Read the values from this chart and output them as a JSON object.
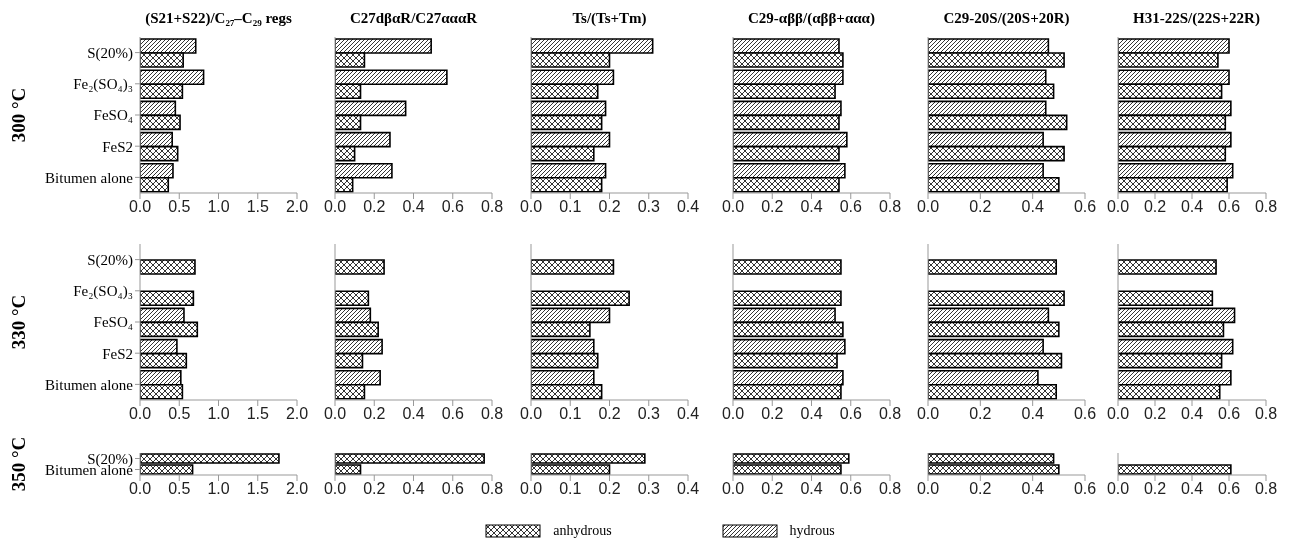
{
  "chart_data": [
    {
      "type": "bar",
      "orientation": "horizontal",
      "title": "(S21+S22)/C₂₇–C₂₉ regs",
      "ylabel": "300 °C",
      "legend": "bottom",
      "categories": [
        "S(20%)",
        "Fe₂(SO₄)₃",
        "FeSO₄",
        "FeS2",
        "Bitumen alone"
      ],
      "xlim": [
        0,
        2
      ],
      "xticks": [
        {
          "value": 0,
          "label": "0.0"
        },
        {
          "value": 0.5,
          "label": "0.5"
        },
        {
          "value": 1,
          "label": "1.0"
        },
        {
          "value": 1.5,
          "label": "1.5"
        },
        {
          "value": 2,
          "label": "2.0"
        }
      ],
      "series": [
        {
          "name": "anhydrous",
          "color": "#000000",
          "values": [
            0.55,
            0.54,
            0.51,
            0.48,
            0.36
          ]
        },
        {
          "name": "hydrous",
          "color": "#000000",
          "values": [
            0.71,
            0.81,
            0.45,
            0.41,
            0.42
          ]
        }
      ]
    },
    {
      "type": "bar",
      "orientation": "horizontal",
      "title": "C27dβαR/C27αααR",
      "tick_labels": "x",
      "categories": [
        null,
        null,
        null,
        null,
        null
      ],
      "xlim": [
        0,
        0.8
      ],
      "xticks": [
        {
          "value": 0,
          "label": "0.0"
        },
        {
          "value": 0.2,
          "label": "0.2"
        },
        {
          "value": 0.4,
          "label": "0.4"
        },
        {
          "value": 0.6,
          "label": "0.6"
        },
        {
          "value": 0.8,
          "label": "0.8"
        }
      ],
      "series": [
        {
          "color": "#000000",
          "values": [
            0.15,
            0.13,
            0.13,
            0.1,
            0.09
          ]
        },
        {
          "color": "#000000",
          "values": [
            0.49,
            0.57,
            0.36,
            0.28,
            0.29
          ]
        }
      ]
    },
    {
      "type": "bar",
      "orientation": "horizontal",
      "title": "Ts/(Ts+Tm)",
      "tick_labels": "x",
      "categories": [
        null,
        null,
        null,
        null,
        null
      ],
      "xlim": [
        0,
        0.4
      ],
      "xticks": [
        {
          "value": 0,
          "label": "0.0"
        },
        0.1,
        0.2,
        0.3,
        0.4
      ],
      "series": [
        {
          "color": "#000000",
          "values": [
            0.2,
            0.17,
            0.18,
            0.16,
            0.18
          ]
        },
        {
          "color": "#000000",
          "values": [
            0.31,
            0.21,
            0.19,
            0.2,
            0.19
          ]
        }
      ]
    },
    {
      "type": "bar",
      "orientation": "horizontal",
      "title": "C29-αββ/(αββ+ααα)",
      "tick_labels": "x",
      "categories": [
        null,
        null,
        null,
        null,
        null
      ],
      "xlim": [
        0,
        0.8
      ],
      "xticks": [
        {
          "value": 0,
          "label": "0.0"
        },
        {
          "value": 0.2,
          "label": "0.2"
        },
        {
          "value": 0.4,
          "label": "0.4"
        },
        {
          "value": 0.6,
          "label": "0.6"
        },
        {
          "value": 0.8,
          "label": "0.8"
        }
      ],
      "series": [
        {
          "color": "#000000",
          "values": [
            0.56,
            0.52,
            0.54,
            0.54,
            0.54
          ]
        },
        {
          "color": "#000000",
          "values": [
            0.54,
            0.56,
            0.55,
            0.58,
            0.57
          ]
        }
      ]
    },
    {
      "type": "bar",
      "orientation": "horizontal",
      "title": "C29-20S/(20S+20R)",
      "tick_labels": "x",
      "categories": [
        null,
        null,
        null,
        null,
        null
      ],
      "xlim": [
        0,
        0.6
      ],
      "xticks": [
        {
          "value": 0,
          "label": "0.0"
        },
        {
          "value": 0.2,
          "label": "0.2"
        },
        {
          "value": 0.4,
          "label": "0.4"
        },
        {
          "value": 0.6,
          "label": "0.6"
        }
      ],
      "series": [
        {
          "color": "#000000",
          "values": [
            0.52,
            0.48,
            0.53,
            0.52,
            0.5
          ]
        },
        {
          "color": "#000000",
          "values": [
            0.46,
            0.45,
            0.45,
            0.44,
            0.44
          ]
        }
      ]
    },
    {
      "type": "bar",
      "orientation": "horizontal",
      "title": "H31-22S/(22S+22R)",
      "tick_labels": "x",
      "categories": [
        null,
        null,
        null,
        null,
        null
      ],
      "xlim": [
        0,
        0.8
      ],
      "xticks": [
        {
          "value": 0,
          "label": "0.0"
        },
        {
          "value": 0.2,
          "label": "0.2"
        },
        {
          "value": 0.4,
          "label": "0.4"
        },
        {
          "value": 0.6,
          "label": "0.6"
        },
        {
          "value": 0.8,
          "label": "0.8"
        }
      ],
      "series": [
        {
          "color": "#000000",
          "values": [
            0.54,
            0.56,
            0.58,
            0.58,
            0.59
          ]
        },
        {
          "color": "#000000",
          "values": [
            0.6,
            0.6,
            0.61,
            0.61,
            0.62
          ]
        }
      ]
    },
    {
      "type": "bar",
      "orientation": "horizontal",
      "ylabel": "330 °C",
      "categories": [
        "S(20%)",
        "Fe₂(SO₄)₃",
        "FeSO₄",
        "FeS2",
        "Bitumen alone"
      ],
      "xlim": [
        0,
        2
      ],
      "xticks": [
        {
          "value": 0,
          "label": "0.0"
        },
        {
          "value": 0.5,
          "label": "0.5"
        },
        {
          "value": 1,
          "label": "1.0"
        },
        {
          "value": 1.5,
          "label": "1.5"
        },
        {
          "value": 2,
          "label": "2.0"
        }
      ],
      "series": [
        {
          "color": "#000000",
          "values": [
            0.7,
            0.68,
            0.73,
            0.59,
            0.54
          ]
        },
        {
          "color": "#000000",
          "values": [
            null,
            null,
            0.56,
            0.47,
            0.52
          ]
        }
      ]
    },
    {
      "type": "bar",
      "orientation": "horizontal",
      "tick_labels": "x",
      "categories": [
        null,
        null,
        null,
        null,
        null
      ],
      "xlim": [
        0,
        0.8
      ],
      "xticks": [
        {
          "value": 0,
          "label": "0.0"
        },
        {
          "value": 0.2,
          "label": "0.2"
        },
        {
          "value": 0.4,
          "label": "0.4"
        },
        {
          "value": 0.6,
          "label": "0.6"
        },
        {
          "value": 0.8,
          "label": "0.8"
        }
      ],
      "series": [
        {
          "color": "#000000",
          "values": [
            0.25,
            0.17,
            0.22,
            0.14,
            0.15
          ]
        },
        {
          "color": "#000000",
          "values": [
            null,
            null,
            0.18,
            0.24,
            0.23
          ]
        }
      ]
    },
    {
      "type": "bar",
      "orientation": "horizontal",
      "tick_labels": "x",
      "categories": [
        null,
        null,
        null,
        null,
        null
      ],
      "xlim": [
        0,
        0.4
      ],
      "xticks": [
        {
          "value": 0,
          "label": "0.0"
        },
        0.1,
        0.2,
        0.3,
        0.4
      ],
      "series": [
        {
          "color": "#000000",
          "values": [
            0.21,
            0.25,
            0.15,
            0.17,
            0.18
          ]
        },
        {
          "color": "#000000",
          "values": [
            null,
            null,
            0.2,
            0.16,
            0.16
          ]
        }
      ]
    },
    {
      "type": "bar",
      "orientation": "horizontal",
      "tick_labels": "x",
      "categories": [
        null,
        null,
        null,
        null,
        null
      ],
      "xlim": [
        0,
        0.8
      ],
      "xticks": [
        {
          "value": 0,
          "label": "0.0"
        },
        {
          "value": 0.2,
          "label": "0.2"
        },
        {
          "value": 0.4,
          "label": "0.4"
        },
        {
          "value": 0.6,
          "label": "0.6"
        },
        {
          "value": 0.8,
          "label": "0.8"
        }
      ],
      "series": [
        {
          "color": "#000000",
          "values": [
            0.55,
            0.55,
            0.56,
            0.53,
            0.55
          ]
        },
        {
          "color": "#000000",
          "values": [
            null,
            null,
            0.52,
            0.57,
            0.56
          ]
        }
      ]
    },
    {
      "type": "bar",
      "orientation": "horizontal",
      "tick_labels": "x",
      "categories": [
        null,
        null,
        null,
        null,
        null
      ],
      "xlim": [
        0,
        0.6
      ],
      "xticks": [
        {
          "value": 0,
          "label": "0.0"
        },
        {
          "value": 0.2,
          "label": "0.2"
        },
        {
          "value": 0.4,
          "label": "0.4"
        },
        {
          "value": 0.6,
          "label": "0.6"
        }
      ],
      "series": [
        {
          "color": "#000000",
          "values": [
            0.49,
            0.52,
            0.5,
            0.51,
            0.49
          ]
        },
        {
          "color": "#000000",
          "values": [
            null,
            null,
            0.46,
            0.44,
            0.42
          ]
        }
      ]
    },
    {
      "type": "bar",
      "orientation": "horizontal",
      "tick_labels": "x",
      "categories": [
        null,
        null,
        null,
        null,
        null
      ],
      "xlim": [
        0,
        0.8
      ],
      "xticks": [
        {
          "value": 0,
          "label": "0.0"
        },
        {
          "value": 0.2,
          "label": "0.2"
        },
        {
          "value": 0.4,
          "label": "0.4"
        },
        {
          "value": 0.6,
          "label": "0.6"
        },
        {
          "value": 0.8,
          "label": "0.8"
        }
      ],
      "series": [
        {
          "color": "#000000",
          "values": [
            0.53,
            0.51,
            0.57,
            0.56,
            0.55
          ]
        },
        {
          "color": "#000000",
          "values": [
            null,
            null,
            0.63,
            0.62,
            0.61
          ]
        }
      ]
    },
    {
      "type": "bar",
      "orientation": "horizontal",
      "ylabel": "350 °C",
      "categories": [
        "S(20%)",
        "Bitumen alone"
      ],
      "xlim": [
        0,
        2
      ],
      "xticks": [
        {
          "value": 0,
          "label": "0.0"
        },
        {
          "value": 0.5,
          "label": "0.5"
        },
        {
          "value": 1,
          "label": "1.0"
        },
        {
          "value": 1.5,
          "label": "1.5"
        },
        {
          "value": 2,
          "label": "2.0"
        }
      ],
      "series": [
        {
          "color": "#000000",
          "values": [
            1.77,
            0.67
          ]
        }
      ]
    },
    {
      "type": "bar",
      "orientation": "horizontal",
      "tick_labels": "x",
      "categories": [
        null,
        null
      ],
      "xlim": [
        0,
        0.8
      ],
      "xticks": [
        {
          "value": 0,
          "label": "0.0"
        },
        {
          "value": 0.2,
          "label": "0.2"
        },
        {
          "value": 0.4,
          "label": "0.4"
        },
        {
          "value": 0.6,
          "label": "0.6"
        },
        {
          "value": 0.8,
          "label": "0.8"
        }
      ],
      "series": [
        {
          "color": "#000000",
          "values": [
            0.76,
            0.13
          ]
        }
      ]
    },
    {
      "type": "bar",
      "orientation": "horizontal",
      "tick_labels": "x",
      "categories": [
        null,
        null
      ],
      "xlim": [
        0,
        0.4
      ],
      "xticks": [
        {
          "value": 0,
          "label": "0.0"
        },
        0.1,
        0.2,
        0.3,
        0.4
      ],
      "series": [
        {
          "color": "#000000",
          "values": [
            0.29,
            0.2
          ]
        }
      ]
    },
    {
      "type": "bar",
      "orientation": "horizontal",
      "tick_labels": "x",
      "categories": [
        null,
        null
      ],
      "xlim": [
        0,
        0.8
      ],
      "xticks": [
        {
          "value": 0,
          "label": "0.0"
        },
        {
          "value": 0.2,
          "label": "0.2"
        },
        {
          "value": 0.4,
          "label": "0.4"
        },
        {
          "value": 0.6,
          "label": "0.6"
        },
        {
          "value": 0.8,
          "label": "0.8"
        }
      ],
      "series": [
        {
          "color": "#000000",
          "values": [
            0.59,
            0.55
          ]
        }
      ]
    },
    {
      "type": "bar",
      "orientation": "horizontal",
      "tick_labels": "x",
      "categories": [
        null,
        null
      ],
      "xlim": [
        0,
        0.6
      ],
      "xticks": [
        {
          "value": 0,
          "label": "0.0"
        },
        {
          "value": 0.2,
          "label": "0.2"
        },
        {
          "value": 0.4,
          "label": "0.4"
        },
        {
          "value": 0.6,
          "label": "0.6"
        }
      ],
      "series": [
        {
          "color": "#000000",
          "values": [
            0.48,
            0.5
          ]
        }
      ]
    },
    {
      "type": "bar",
      "orientation": "horizontal",
      "tick_labels": "x",
      "categories": [
        null,
        null
      ],
      "xlim": [
        0,
        0.8
      ],
      "xticks": [
        {
          "value": 0,
          "label": "0.0"
        },
        {
          "value": 0.2,
          "label": "0.2"
        },
        {
          "value": 0.4,
          "label": "0.4"
        },
        {
          "value": 0.6,
          "label": "0.6"
        },
        {
          "value": 0.8,
          "label": "0.8"
        }
      ],
      "series": [
        {
          "color": "#000000",
          "values": [
            null,
            0.61
          ]
        }
      ]
    }
  ]
}
